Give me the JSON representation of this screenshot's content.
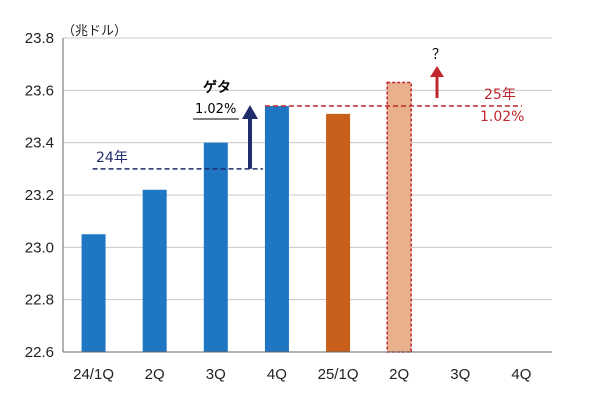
{
  "chart_data": {
    "type": "bar",
    "unit_label": "（兆ドル）",
    "categories": [
      "24/1Q",
      "2Q",
      "3Q",
      "4Q",
      "25/1Q",
      "2Q",
      "3Q",
      "4Q"
    ],
    "values": [
      23.05,
      23.22,
      23.4,
      23.54,
      23.51,
      23.63,
      null,
      null
    ],
    "ylim": [
      22.6,
      23.8
    ],
    "yticks": [
      "22.6",
      "22.8",
      "23.0",
      "23.2",
      "23.4",
      "23.6",
      "23.8"
    ],
    "grid": true,
    "colors": {
      "year_2024": "#1f77c4",
      "year_2025": "#c8601c",
      "projection": "#e8b08c",
      "navy": "#1f2d6b",
      "red": "#c0272d",
      "grid": "#c8c8c8"
    },
    "annotations": {
      "avg_2024": {
        "label": "24年",
        "value": 23.3
      },
      "avg_2025": {
        "label": "25年",
        "value": 23.54,
        "growth": "1.02%"
      },
      "carryover": {
        "label": "ゲタ",
        "value": "1.02%"
      },
      "question": "？"
    }
  }
}
